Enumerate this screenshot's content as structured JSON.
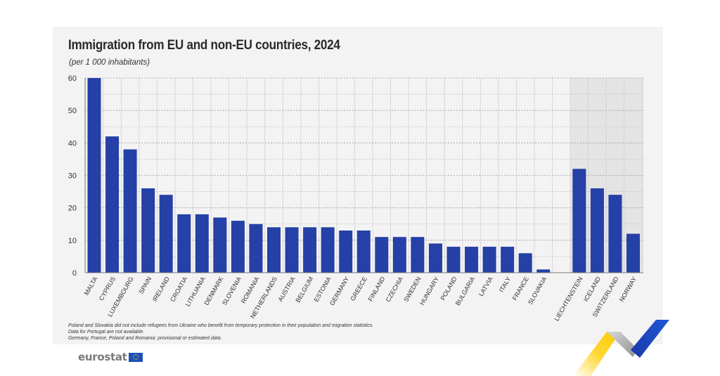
{
  "chart_data": {
    "type": "bar",
    "title": "Immigration from EU and non-EU countries, 2024",
    "subtitle": "(per 1 000 inhabitants)",
    "xlabel": "",
    "ylabel": "",
    "ylim": [
      0,
      60
    ],
    "yticks": [
      "0",
      "10",
      "20",
      "30",
      "40",
      "50",
      "60"
    ],
    "grid": true,
    "groups": [
      {
        "name": "EU",
        "shaded": false,
        "categories": [
          "MALTA",
          "CYPRUS",
          "LUXEMBOURG",
          "SPAIN",
          "IRELAND",
          "CROATIA",
          "LITHUANIA",
          "DENMARK",
          "SLOVENIA",
          "ROMANIA",
          "NETHERLANDS",
          "AUSTRIA",
          "BELGIUM",
          "ESTONIA",
          "GERMANY",
          "GREECE",
          "FINLAND",
          "CZECHIA",
          "SWEDEN",
          "HUNGARY",
          "POLAND",
          "BULGARIA",
          "LATVIA",
          "ITALY",
          "FRANCE",
          "SLOVAKIA"
        ],
        "values": [
          60,
          42,
          38,
          26,
          24,
          18,
          18,
          17,
          16,
          15,
          14,
          14,
          14,
          14,
          13,
          13,
          11,
          11,
          11,
          9,
          8,
          8,
          8,
          8,
          6,
          1
        ]
      },
      {
        "name": "non-EU",
        "shaded": true,
        "categories": [
          "LIECHTENSTEIN",
          "ICELAND",
          "SWITZERLAND",
          "NORWAY"
        ],
        "values": [
          32,
          26,
          24,
          12
        ]
      }
    ],
    "bar_color": "#2540a6",
    "shade_color": "#e4e4e4"
  },
  "notes": [
    "Poland and Slovakia did not include refugees from Ukraine who benefit from temporary protection in their population and migration statistics.",
    "Data for Portugal are not available.",
    "Germany, France, Poland and Romania: provisional or estimated data."
  ],
  "logo": {
    "text": "eurostat",
    "icon": "eu-flag-icon"
  }
}
